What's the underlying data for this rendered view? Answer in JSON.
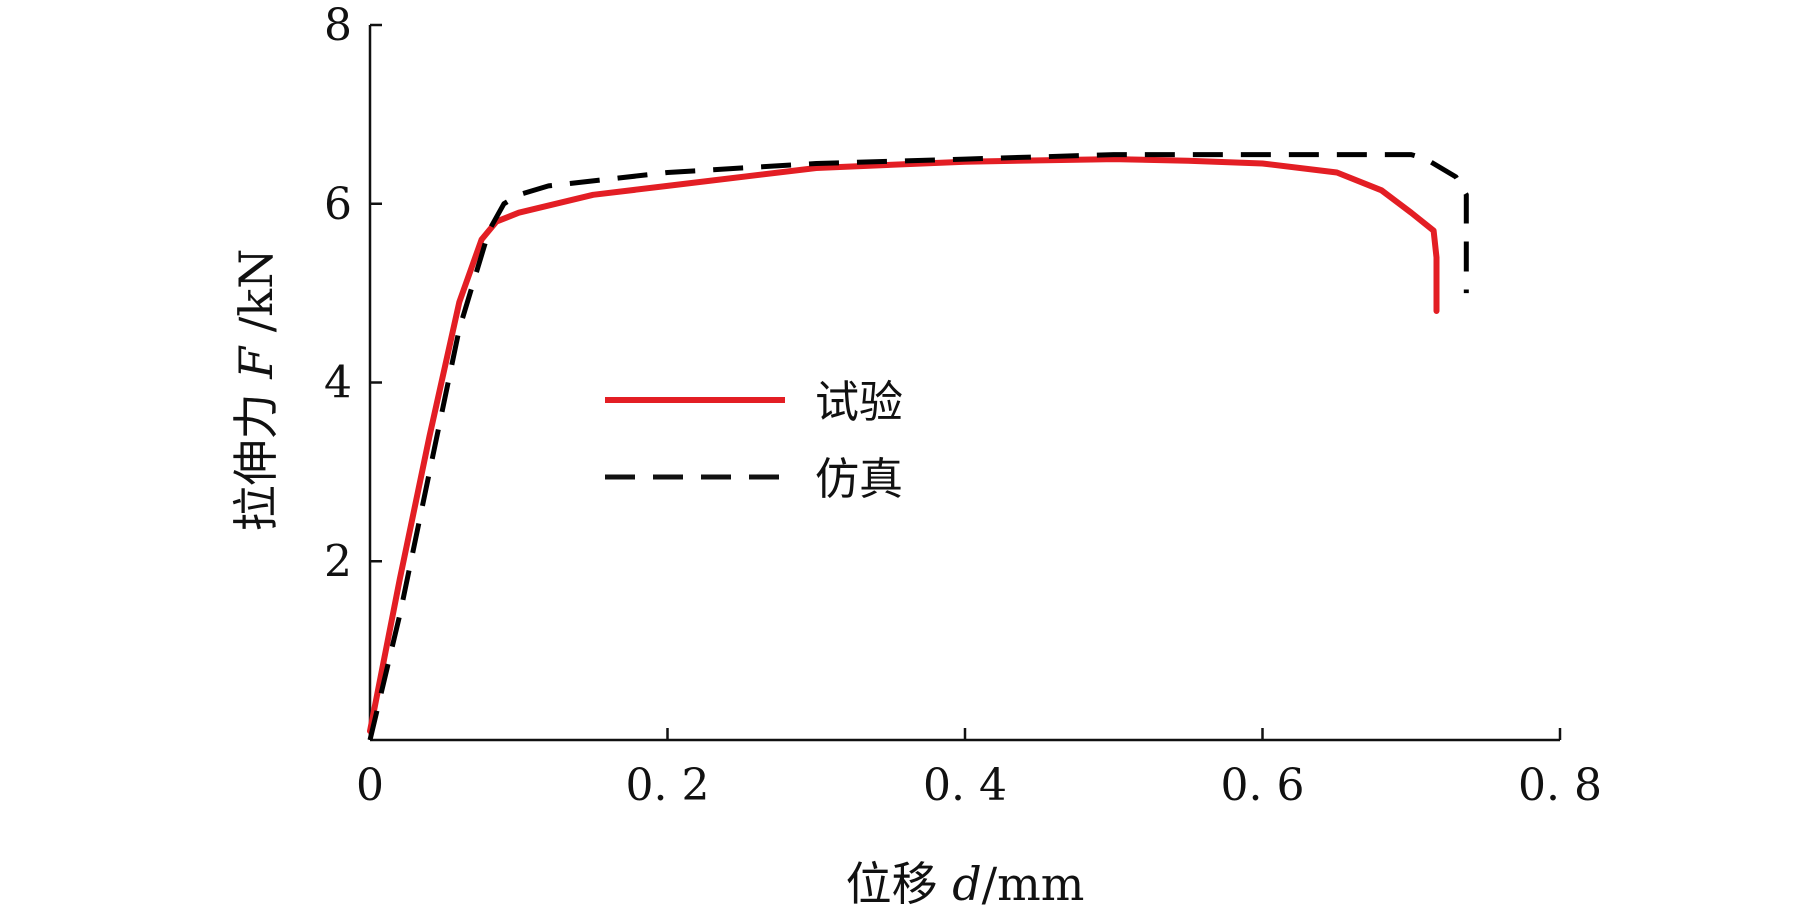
{
  "chart_data": {
    "type": "line",
    "xlabel": {
      "prefix": "位移 ",
      "symbol": "d",
      "unit": "/mm"
    },
    "ylabel": {
      "prefix": "拉伸力 ",
      "symbol": "F",
      "unit": " /kN"
    },
    "xlim": [
      0,
      0.8
    ],
    "ylim": [
      0,
      8
    ],
    "x_ticks": [
      0,
      0.2,
      0.4,
      0.6,
      0.8
    ],
    "x_tick_labels": [
      "0",
      "0. 2",
      "0. 4",
      "0. 6",
      "0. 8"
    ],
    "y_ticks": [
      2,
      4,
      6,
      8
    ],
    "y_tick_labels": [
      "2",
      "4",
      "6",
      "8"
    ],
    "grid": false,
    "legend_position": "center-left",
    "series": [
      {
        "name": "试验",
        "color": "#e31e24",
        "style": "solid",
        "x": [
          0.0,
          0.02,
          0.04,
          0.06,
          0.075,
          0.085,
          0.1,
          0.15,
          0.2,
          0.3,
          0.4,
          0.5,
          0.55,
          0.6,
          0.65,
          0.68,
          0.7,
          0.715,
          0.717,
          0.717
        ],
        "y": [
          0.1,
          1.8,
          3.4,
          4.9,
          5.6,
          5.8,
          5.9,
          6.1,
          6.2,
          6.4,
          6.47,
          6.5,
          6.48,
          6.45,
          6.35,
          6.15,
          5.9,
          5.7,
          5.4,
          4.8
        ]
      },
      {
        "name": "仿真",
        "color": "#000000",
        "style": "dashed",
        "x": [
          0.0,
          0.02,
          0.04,
          0.06,
          0.08,
          0.09,
          0.1,
          0.12,
          0.2,
          0.3,
          0.4,
          0.5,
          0.6,
          0.7,
          0.71,
          0.73,
          0.737,
          0.737
        ],
        "y": [
          0.0,
          1.4,
          3.0,
          4.6,
          5.7,
          6.0,
          6.1,
          6.2,
          6.35,
          6.45,
          6.5,
          6.55,
          6.55,
          6.55,
          6.5,
          6.3,
          6.1,
          5.0
        ]
      }
    ]
  }
}
